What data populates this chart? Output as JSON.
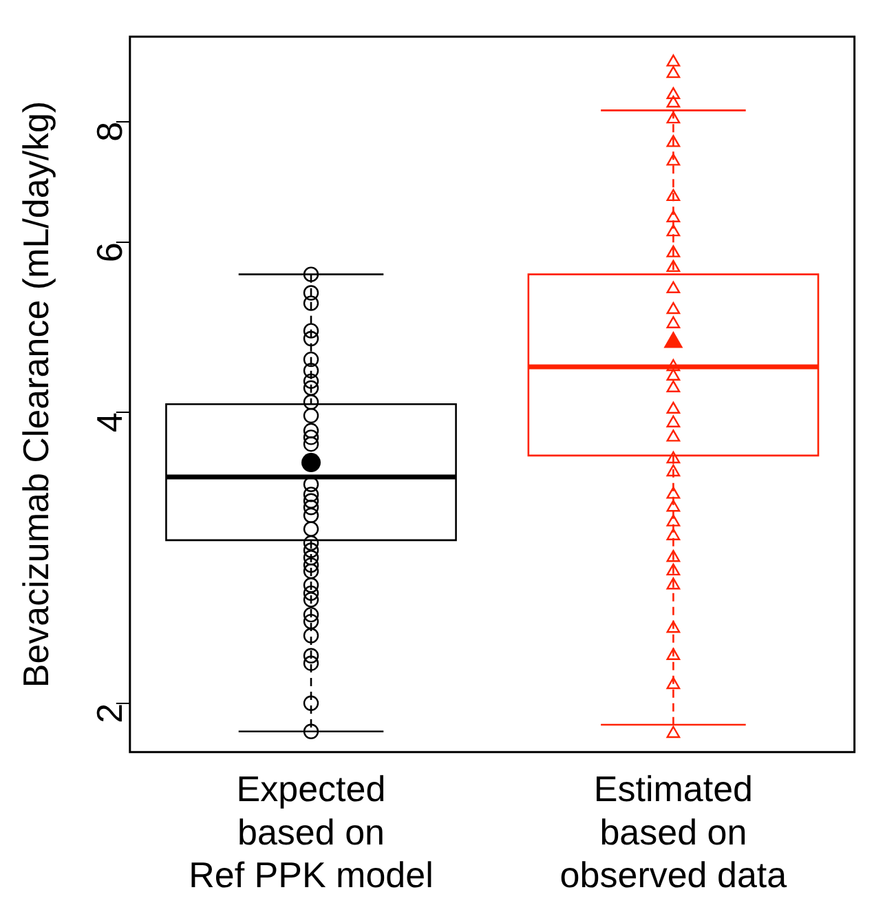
{
  "chart_data": {
    "type": "box",
    "ylabel": "Bevacizumab Clearance (mL/day/kg)",
    "log": "y",
    "grid": false,
    "legend": false,
    "categories": [
      "Expected\nbased on\nRef PPK model",
      "Estimated\nbased on\nobserved data"
    ],
    "colors": [
      "#000000",
      "#ff2200"
    ],
    "boxes": [
      {
        "low": 1.87,
        "q1": 2.95,
        "median": 3.43,
        "q3": 4.08,
        "high": 5.56,
        "mean": 3.55
      },
      {
        "low": 1.9,
        "q1": 3.61,
        "median": 4.46,
        "q3": 5.56,
        "high": 8.22,
        "mean": 4.73
      }
    ],
    "ylim": [
      1.78,
      9.8
    ],
    "yticks": [
      2,
      4,
      6,
      8
    ],
    "series": [
      {
        "type": "scatter",
        "color": "#000000",
        "marker": "circle",
        "x": [
          "Expected\nbased on\nRef PPK model",
          "Expected\nbased on\nRef PPK model",
          "Expected\nbased on\nRef PPK model",
          "Expected\nbased on\nRef PPK model",
          "Expected\nbased on\nRef PPK model",
          "Expected\nbased on\nRef PPK model",
          "Expected\nbased on\nRef PPK model",
          "Expected\nbased on\nRef PPK model",
          "Expected\nbased on\nRef PPK model",
          "Expected\nbased on\nRef PPK model",
          "Expected\nbased on\nRef PPK model",
          "Expected\nbased on\nRef PPK model",
          "Expected\nbased on\nRef PPK model",
          "Expected\nbased on\nRef PPK model",
          "Expected\nbased on\nRef PPK model",
          "Expected\nbased on\nRef PPK model",
          "Expected\nbased on\nRef PPK model",
          "Expected\nbased on\nRef PPK model",
          "Expected\nbased on\nRef PPK model",
          "Expected\nbased on\nRef PPK model",
          "Expected\nbased on\nRef PPK model",
          "Expected\nbased on\nRef PPK model",
          "Expected\nbased on\nRef PPK model",
          "Expected\nbased on\nRef PPK model",
          "Expected\nbased on\nRef PPK model",
          "Expected\nbased on\nRef PPK model",
          "Expected\nbased on\nRef PPK model",
          "Expected\nbased on\nRef PPK model",
          "Expected\nbased on\nRef PPK model",
          "Expected\nbased on\nRef PPK model",
          "Expected\nbased on\nRef PPK model",
          "Expected\nbased on\nRef PPK model",
          "Expected\nbased on\nRef PPK model",
          "Expected\nbased on\nRef PPK model",
          "Expected\nbased on\nRef PPK model"
        ],
        "values": [
          5.56,
          5.32,
          5.19,
          4.86,
          4.77,
          4.54,
          4.42,
          4.31,
          4.24,
          4.1,
          3.97,
          3.83,
          3.77,
          3.71,
          3.37,
          3.29,
          3.24,
          3.19,
          3.13,
          3.03,
          2.93,
          2.88,
          2.83,
          2.78,
          2.74,
          2.65,
          2.6,
          2.56,
          2.47,
          2.43,
          2.35,
          2.24,
          2.2,
          2.0,
          1.87
        ]
      },
      {
        "type": "scatter",
        "color": "#ff2200",
        "marker": "triangle",
        "x": [
          "Estimated\nbased on\nobserved data",
          "Estimated\nbased on\nobserved data",
          "Estimated\nbased on\nobserved data",
          "Estimated\nbased on\nobserved data",
          "Estimated\nbased on\nobserved data",
          "Estimated\nbased on\nobserved data",
          "Estimated\nbased on\nobserved data",
          "Estimated\nbased on\nobserved data",
          "Estimated\nbased on\nobserved data",
          "Estimated\nbased on\nobserved data",
          "Estimated\nbased on\nobserved data",
          "Estimated\nbased on\nobserved data",
          "Estimated\nbased on\nobserved data",
          "Estimated\nbased on\nobserved data",
          "Estimated\nbased on\nobserved data",
          "Estimated\nbased on\nobserved data",
          "Estimated\nbased on\nobserved data",
          "Estimated\nbased on\nobserved data",
          "Estimated\nbased on\nobserved data",
          "Estimated\nbased on\nobserved data",
          "Estimated\nbased on\nobserved data",
          "Estimated\nbased on\nobserved data",
          "Estimated\nbased on\nobserved data",
          "Estimated\nbased on\nobserved data",
          "Estimated\nbased on\nobserved data",
          "Estimated\nbased on\nobserved data",
          "Estimated\nbased on\nobserved data",
          "Estimated\nbased on\nobserved data",
          "Estimated\nbased on\nobserved data",
          "Estimated\nbased on\nobserved data",
          "Estimated\nbased on\nobserved data",
          "Estimated\nbased on\nobserved data",
          "Estimated\nbased on\nobserved data",
          "Estimated\nbased on\nobserved data"
        ],
        "values": [
          9.22,
          8.97,
          8.53,
          8.36,
          8.05,
          7.61,
          7.28,
          6.69,
          6.36,
          6.15,
          5.85,
          5.65,
          5.37,
          5.11,
          4.94,
          4.46,
          4.36,
          4.24,
          4.03,
          3.9,
          3.77,
          3.58,
          3.47,
          3.29,
          3.19,
          3.08,
          2.98,
          2.83,
          2.74,
          2.65,
          2.39,
          2.24,
          2.09,
          1.86
        ]
      }
    ]
  }
}
